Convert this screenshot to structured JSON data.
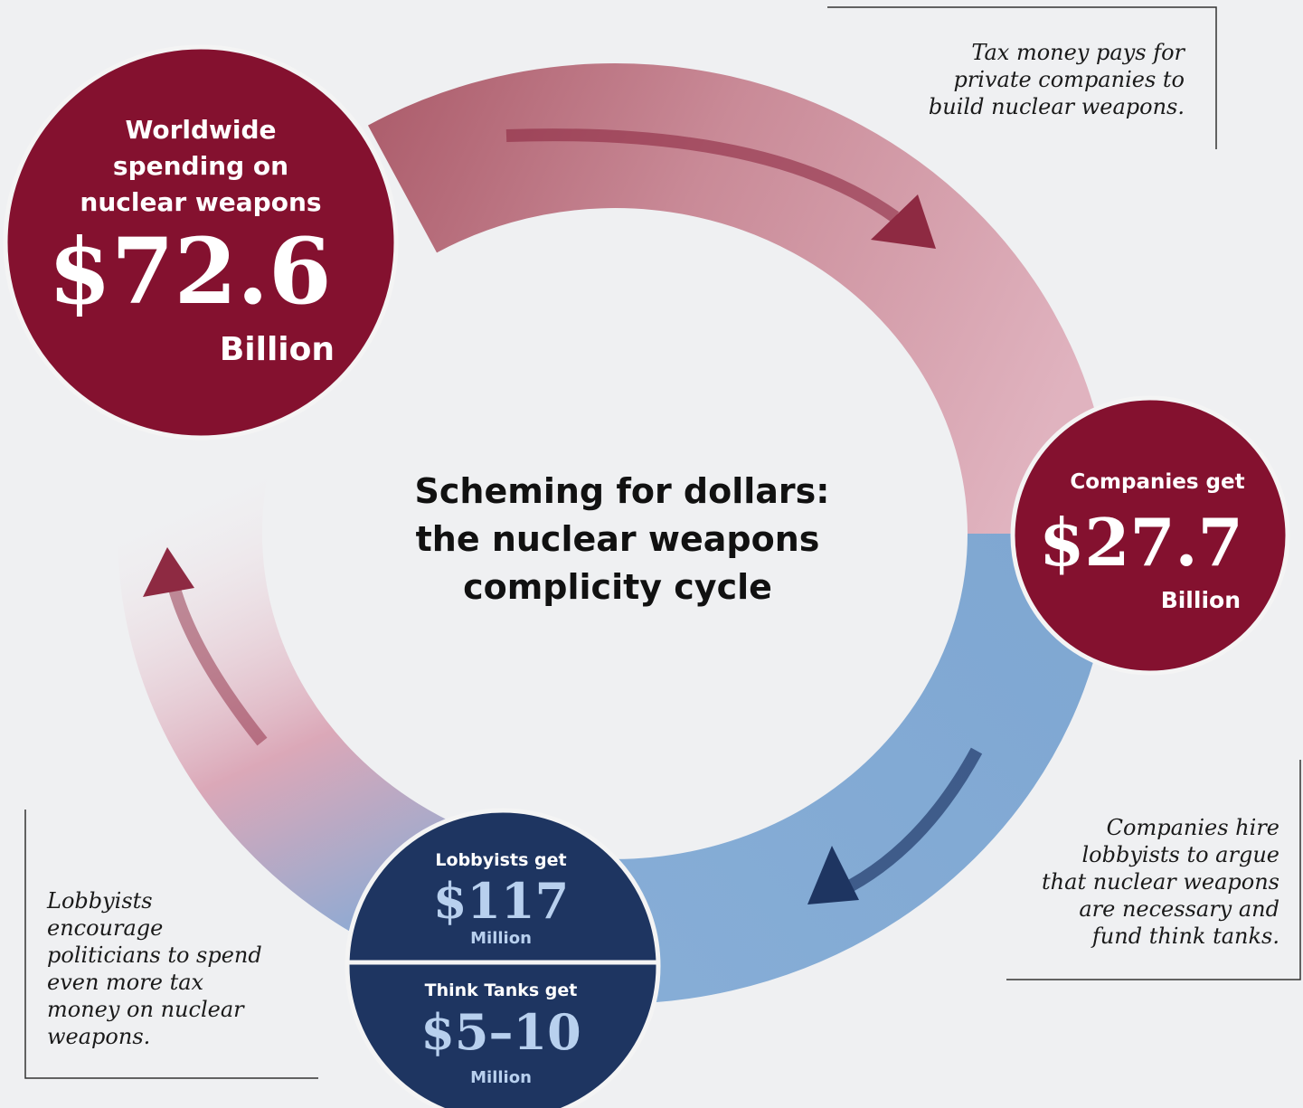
{
  "title": {
    "lines": [
      "Scheming for dollars:",
      "the nuclear weapons",
      "complicity cycle"
    ]
  },
  "nodes": [
    {
      "label": [
        "Worldwide",
        "spending on",
        "nuclear weapons"
      ],
      "amount": "$72.6",
      "unit": "Billion"
    },
    {
      "label": [
        "Companies get"
      ],
      "amount": "$27.7",
      "unit": "Billion"
    },
    {
      "label": [
        "Lobbyists get"
      ],
      "amount": "$117",
      "unit": "Million"
    },
    {
      "label": [
        "Think Tanks get"
      ],
      "amount": "$5–10",
      "unit": "Million"
    }
  ],
  "notes": [
    {
      "lines": [
        "Tax money pays for",
        "private companies to",
        "build nuclear weapons."
      ]
    },
    {
      "lines": [
        "Companies hire",
        "lobbyists to argue",
        "that nuclear weapons",
        "are necessary and",
        "fund think tanks."
      ]
    },
    {
      "lines": [
        "Lobbyists",
        "encourage",
        "politicians to spend",
        "even more tax",
        "money on nuclear",
        "weapons."
      ]
    }
  ]
}
